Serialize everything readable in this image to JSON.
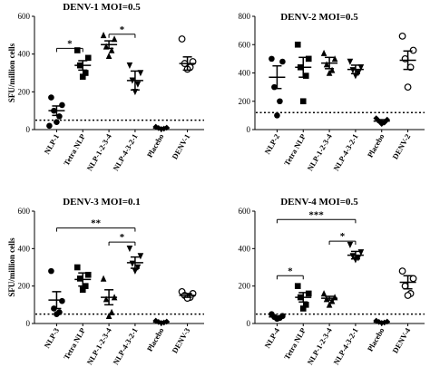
{
  "chart_data": [
    {
      "type": "scatter",
      "title": "DENV-1 MOI=0.5",
      "ylabel": "SFU/million cells",
      "ylim": [
        0,
        600
      ],
      "yticks": [
        "0",
        "200",
        "400",
        "600"
      ],
      "categories": [
        "NLP-1",
        "Tetra NLP",
        "NLP-1-2-3-4",
        "NLP-4-3-2-1",
        "Placebo",
        "DENV-1"
      ],
      "markers": [
        "circle",
        "square",
        "triangle-up",
        "triangle-down",
        "diamond",
        "open-circle"
      ],
      "points": [
        [
          170,
          130,
          100,
          70,
          40,
          20
        ],
        [
          420,
          380,
          340,
          300,
          280
        ],
        [
          500,
          480,
          440,
          420,
          390
        ],
        [
          340,
          300,
          260,
          240,
          200
        ],
        [
          15,
          10,
          8,
          5,
          3
        ],
        [
          480,
          360,
          350,
          330,
          320
        ]
      ],
      "means": [
        100,
        340,
        450,
        260,
        8,
        350
      ],
      "sem": [
        25,
        25,
        20,
        50,
        3,
        35
      ],
      "reference_line": 50,
      "comparisons": [
        {
          "from": 0,
          "to": 1,
          "y": 430,
          "label": "*"
        },
        {
          "from": 2,
          "to": 3,
          "y": 505,
          "label": "*"
        }
      ]
    },
    {
      "type": "scatter",
      "title": "DENV-2 MOI=0.5",
      "ylabel": "",
      "ylim": [
        0,
        800
      ],
      "yticks": [
        "0",
        "200",
        "400",
        "600",
        "800"
      ],
      "categories": [
        "NLP-2",
        "Tetra NLP",
        "NLP-1-2-3-4",
        "NLP-4-3-2-1",
        "Placebo",
        "DENV-2"
      ],
      "markers": [
        "circle",
        "square",
        "triangle-up",
        "triangle-down",
        "diamond",
        "open-circle"
      ],
      "points": [
        [
          500,
          480,
          300,
          200,
          100
        ],
        [
          600,
          500,
          440,
          380,
          200
        ],
        [
          540,
          500,
          460,
          420,
          400
        ],
        [
          480,
          440,
          420,
          400,
          380
        ],
        [
          80,
          70,
          60,
          50,
          40
        ],
        [
          660,
          560,
          500,
          440,
          300
        ]
      ],
      "means": [
        370,
        440,
        470,
        425,
        60,
        490
      ],
      "sem": [
        80,
        70,
        40,
        30,
        10,
        65
      ],
      "reference_line": 120,
      "comparisons": []
    },
    {
      "type": "scatter",
      "title": "DENV-3 MOI=0.1",
      "ylabel": "SFU/million cells",
      "ylim": [
        0,
        600
      ],
      "yticks": [
        "0",
        "200",
        "400",
        "600"
      ],
      "categories": [
        "NLP-3",
        "Tetra NLP",
        "NLP-1-2-3-4",
        "NLP-4-3-2-1",
        "Placebo",
        "DENV-3"
      ],
      "markers": [
        "circle",
        "square",
        "triangle-up",
        "triangle-down",
        "diamond",
        "open-circle"
      ],
      "points": [
        [
          280,
          120,
          80,
          60,
          50
        ],
        [
          300,
          260,
          240,
          200,
          180
        ],
        [
          240,
          140,
          130,
          60,
          40
        ],
        [
          400,
          360,
          320,
          300,
          280
        ],
        [
          15,
          10,
          8,
          5,
          3
        ],
        [
          170,
          160,
          150,
          140,
          135
        ]
      ],
      "means": [
        125,
        235,
        140,
        325,
        8,
        150
      ],
      "sem": [
        45,
        35,
        40,
        30,
        3,
        10
      ],
      "reference_line": 50,
      "comparisons": [
        {
          "from": 0,
          "to": 3,
          "y": 510,
          "label": "**"
        },
        {
          "from": 2,
          "to": 3,
          "y": 435,
          "label": "*"
        }
      ]
    },
    {
      "type": "scatter",
      "title": "DENV-4 MOI=0.5",
      "ylabel": "",
      "ylim": [
        0,
        600
      ],
      "yticks": [
        "0",
        "200",
        "400",
        "600"
      ],
      "categories": [
        "NLP-4",
        "Tetra NLP",
        "NLP-1-2-3-4",
        "NLP-4-3-2-1",
        "Placebo",
        "DENV-4"
      ],
      "markers": [
        "circle",
        "square",
        "triangle-up",
        "triangle-down",
        "diamond",
        "open-circle"
      ],
      "points": [
        [
          50,
          40,
          35,
          30,
          25
        ],
        [
          200,
          160,
          140,
          100,
          80
        ],
        [
          160,
          140,
          130,
          120,
          100
        ],
        [
          420,
          380,
          360,
          350,
          340
        ],
        [
          15,
          10,
          8,
          5,
          3
        ],
        [
          280,
          240,
          200,
          160,
          150
        ]
      ],
      "means": [
        35,
        140,
        135,
        365,
        8,
        220
      ],
      "sem": [
        5,
        25,
        10,
        20,
        3,
        35
      ],
      "reference_line": 50,
      "comparisons": [
        {
          "from": 0,
          "to": 1,
          "y": 255,
          "label": "*"
        },
        {
          "from": 2,
          "to": 3,
          "y": 440,
          "label": "*"
        },
        {
          "from": 0,
          "to": 3,
          "y": 555,
          "label": "***"
        }
      ]
    }
  ]
}
